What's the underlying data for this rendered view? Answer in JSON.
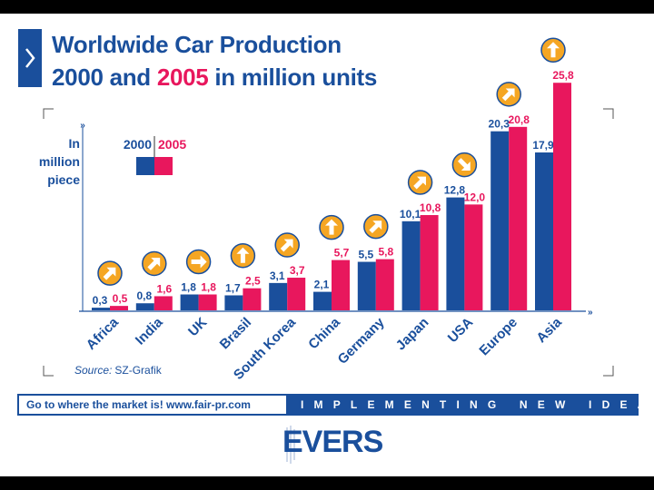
{
  "title": {
    "line1": "Worldwide Car Production",
    "line2_prefix": "2000 and ",
    "line2_year": "2005",
    "line2_suffix": " in million units"
  },
  "legend": {
    "unit_line1": "In",
    "unit_line2": "million",
    "unit_line3": "piece",
    "year_a": "2000",
    "year_b": "2005"
  },
  "source": {
    "label": "Source:",
    "value": "SZ-Grafik"
  },
  "footer": {
    "slogan": "Go to where the market is!   www.fair-pr.com",
    "tagline": "IMPLEMENTING NEW IDEAS"
  },
  "logo": {
    "text": "EVERS"
  },
  "colors": {
    "blue": "#1a4f9c",
    "red": "#e8175d",
    "arrow_circle": "#f5a623"
  },
  "chart_data": {
    "type": "bar",
    "title": "Worldwide Car Production 2000 and 2005 in million units",
    "ylabel": "In million piece",
    "xlabel": "",
    "ylim": [
      0,
      26
    ],
    "grid": false,
    "legend_position": "top-left",
    "categories": [
      "Africa",
      "India",
      "UK",
      "Brasil",
      "South Korea",
      "China",
      "Germany",
      "Japan",
      "USA",
      "Europe",
      "Asia"
    ],
    "series": [
      {
        "name": "2000",
        "color": "#1a4f9c",
        "values": [
          0.3,
          0.8,
          1.8,
          1.7,
          3.1,
          2.1,
          5.5,
          10.1,
          12.8,
          20.3,
          17.9
        ],
        "labels": [
          "0,3",
          "0,8",
          "1,8",
          "1,7",
          "3,1",
          "2,1",
          "5,5",
          "10,1",
          "12,8",
          "20,3",
          "17,9"
        ]
      },
      {
        "name": "2005",
        "color": "#e8175d",
        "values": [
          0.5,
          1.6,
          1.8,
          2.5,
          3.7,
          5.7,
          5.8,
          10.8,
          12.0,
          20.8,
          25.8
        ],
        "labels": [
          "0,5",
          "1,6",
          "1,8",
          "2,5",
          "3,7",
          "5,7",
          "5,8",
          "10,8",
          "12,0",
          "20,8",
          "25,8"
        ]
      }
    ],
    "trend_arrows": [
      "up-right",
      "up-right",
      "right",
      "up",
      "up-right",
      "up",
      "up-right",
      "up-right",
      "down-right",
      "up-right",
      "up"
    ]
  }
}
